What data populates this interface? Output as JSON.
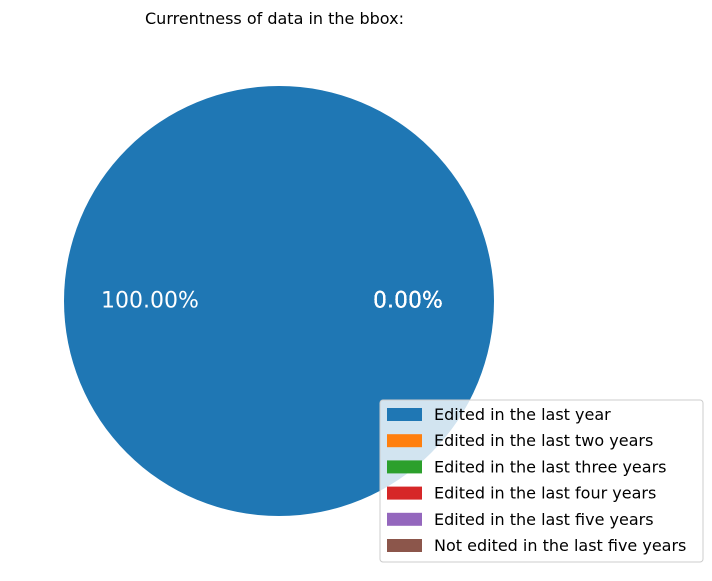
{
  "chart_data": {
    "type": "pie",
    "title": "Currentness of data in the bbox:",
    "categories": [
      "Edited in the last year",
      "Edited in the last two years",
      "Edited in the last three years",
      "Edited in the last four years",
      "Edited in the last five years",
      "Not edited in the last five years"
    ],
    "values": [
      100.0,
      0.0,
      0.0,
      0.0,
      0.0,
      0.0
    ],
    "percent_labels": [
      "100.00%",
      "0.00%",
      "0.00%",
      "0.00%",
      "0.00%",
      "0.00%"
    ],
    "colors": [
      "#1f77b4",
      "#ff7f0e",
      "#2ca02c",
      "#d62728",
      "#9467bd",
      "#8c564b"
    ],
    "legend_position": "bottom-right"
  }
}
